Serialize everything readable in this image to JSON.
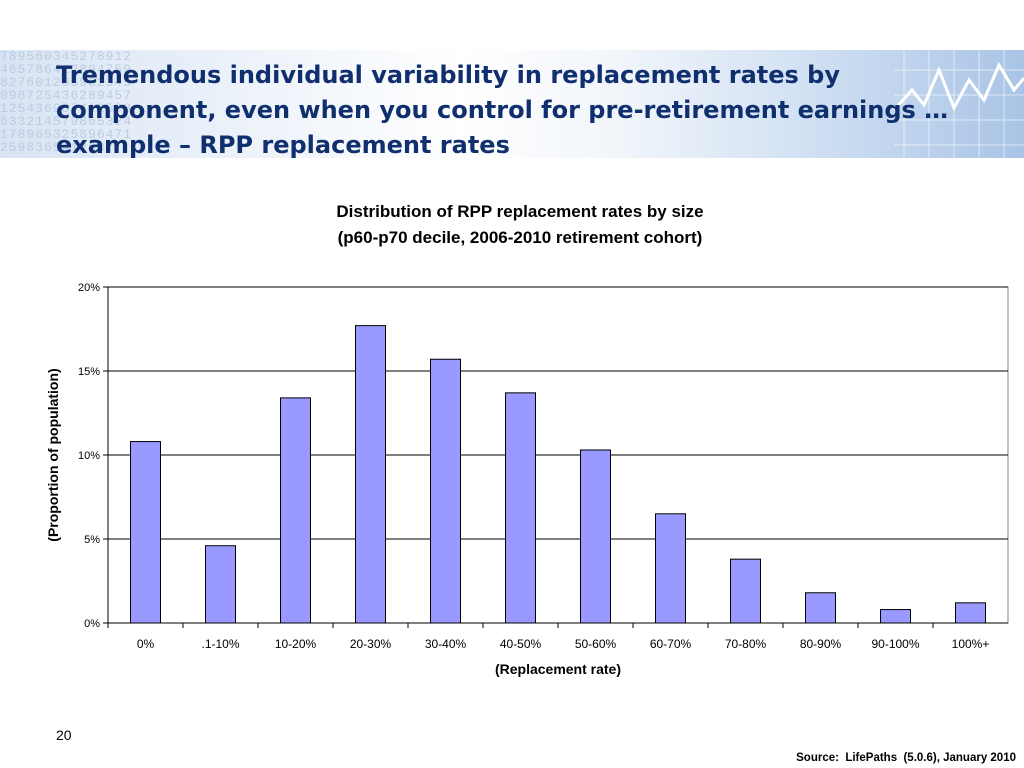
{
  "slide": {
    "title": "Tremendous individual variability in replacement rates by component, even when you control for pre-retirement earnings … example – RPP replacement rates",
    "page_number": "20",
    "source": "Source:  LifePaths  (5.0.6), January 2010"
  },
  "chart_data": {
    "type": "bar",
    "title": "Distribution of RPP replacement rates  by size",
    "subtitle": "(p60-p70 decile, 2006-2010 retirement cohort)",
    "xlabel": "(Replacement rate)",
    "ylabel": "(Proportion of population)",
    "categories": [
      "0%",
      ".1-10%",
      "10-20%",
      "20-30%",
      "30-40%",
      "40-50%",
      "50-60%",
      "60-70%",
      "70-80%",
      "80-90%",
      "90-100%",
      "100%+"
    ],
    "values": [
      10.8,
      4.6,
      13.4,
      17.7,
      15.7,
      13.7,
      10.3,
      6.5,
      3.8,
      1.8,
      0.8,
      1.2
    ],
    "ylim": [
      0,
      20
    ],
    "yticks": [
      0,
      5,
      10,
      15,
      20
    ],
    "ytick_labels": [
      "0%",
      "5%",
      "10%",
      "15%",
      "20%"
    ],
    "grid": true,
    "legend": "none",
    "bar_color": "#9999ff"
  }
}
